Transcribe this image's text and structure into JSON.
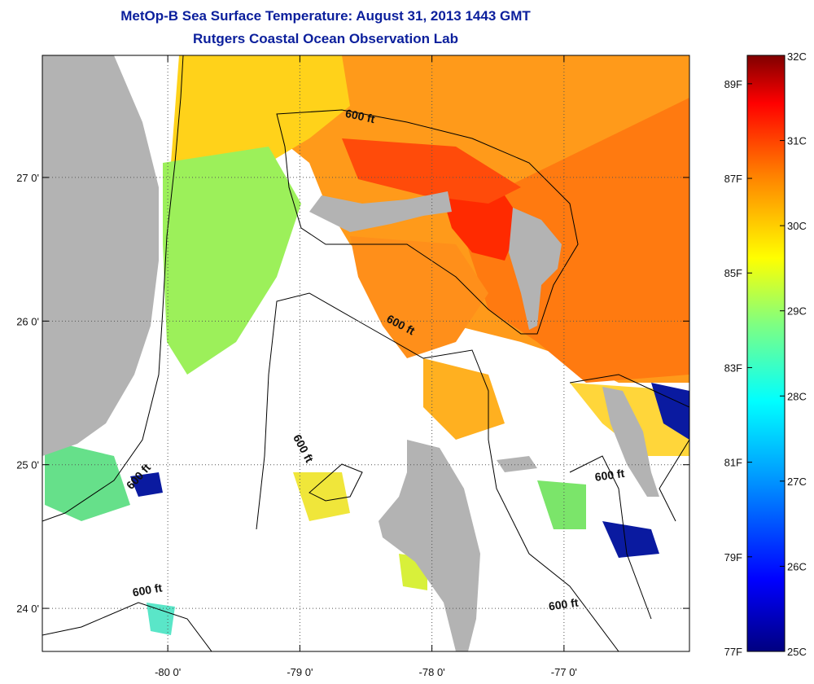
{
  "header": {
    "title": "MetOp-B Sea Surface Temperature:  August 31, 2013 1443 GMT",
    "subtitle": "Rutgers Coastal Ocean Observation Lab"
  },
  "map": {
    "lon_range": [
      -80.95,
      -76.05
    ],
    "lat_range": [
      23.7,
      27.85
    ],
    "lon_ticks": [
      {
        "value": -80,
        "label": "-80 0'"
      },
      {
        "value": -79,
        "label": "-79 0'"
      },
      {
        "value": -78,
        "label": "-78 0'"
      },
      {
        "value": -77,
        "label": "-77 0'"
      }
    ],
    "lat_ticks": [
      {
        "value": 27,
        "label": "27 0'"
      },
      {
        "value": 26,
        "label": "26 0'"
      },
      {
        "value": 25,
        "label": "25 0'"
      },
      {
        "value": 24,
        "label": "24 0'"
      }
    ],
    "contour_labels": [
      {
        "text": "600 ft",
        "lon": -78.55,
        "lat": 27.4
      },
      {
        "text": "600 ft",
        "lon": -78.25,
        "lat": 25.95
      },
      {
        "text": "600 ft",
        "lon": -79.0,
        "lat": 25.1
      },
      {
        "text": "600 ft",
        "lon": -80.2,
        "lat": 24.9
      },
      {
        "text": "600 ft",
        "lon": -80.15,
        "lat": 24.1
      },
      {
        "text": "600 ft",
        "lon": -76.65,
        "lat": 24.9
      },
      {
        "text": "600 ft",
        "lon": -77.0,
        "lat": 24.0
      }
    ],
    "colors": {
      "land": "#b3b3b3",
      "contour": "#000000"
    }
  },
  "colorbar": {
    "celsius_labels": [
      "32C",
      "31C",
      "30C",
      "29C",
      "28C",
      "27C",
      "26C",
      "25C"
    ],
    "fahrenheit_labels": [
      "89F",
      "87F",
      "85F",
      "83F",
      "81F",
      "79F",
      "77F"
    ],
    "range_c": [
      25,
      32
    ],
    "colors": [
      "#000080",
      "#0000ff",
      "#00a0ff",
      "#00ffff",
      "#80ff80",
      "#ffff00",
      "#ff8000",
      "#ff0000",
      "#800000"
    ]
  }
}
